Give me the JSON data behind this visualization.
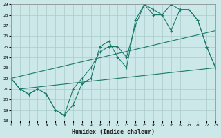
{
  "xlabel": "Humidex (Indice chaleur)",
  "bg_color": "#cce8e8",
  "grid_color": "#aacccc",
  "line_color": "#1a7a6a",
  "series1_x": [
    0,
    1,
    2,
    3,
    4,
    5,
    6,
    7,
    8,
    9,
    10,
    11,
    12,
    13,
    14,
    15,
    16,
    17,
    18,
    19,
    20,
    21,
    22,
    23
  ],
  "series1_y": [
    22,
    21,
    20.5,
    21,
    20.5,
    19,
    18.5,
    19.5,
    21.5,
    22,
    25,
    25.5,
    24,
    23,
    27.5,
    29,
    28.5,
    28,
    29,
    28.5,
    28.5,
    27.5,
    25,
    23
  ],
  "series2_x": [
    0,
    1,
    2,
    3,
    4,
    5,
    6,
    7,
    8,
    9,
    10,
    11,
    12,
    13,
    14,
    15,
    16,
    17,
    18,
    19,
    20,
    21,
    22,
    23
  ],
  "series2_y": [
    22,
    21,
    20.5,
    21,
    20.5,
    19,
    18.5,
    21,
    22,
    23,
    24.5,
    25,
    25,
    24,
    27,
    29,
    28,
    28,
    26.5,
    28.5,
    28.5,
    27.5,
    25,
    23
  ],
  "line3_x": [
    0,
    23
  ],
  "line3_y": [
    22,
    26.5
  ],
  "line4_x": [
    1,
    23
  ],
  "line4_y": [
    21,
    23
  ],
  "ylim": [
    18,
    29
  ],
  "xlim": [
    0,
    23
  ],
  "yticks": [
    18,
    19,
    20,
    21,
    22,
    23,
    24,
    25,
    26,
    27,
    28,
    29
  ],
  "xticks": [
    0,
    1,
    2,
    3,
    4,
    5,
    6,
    7,
    8,
    9,
    10,
    11,
    12,
    13,
    14,
    15,
    16,
    17,
    18,
    19,
    20,
    21,
    22,
    23
  ]
}
